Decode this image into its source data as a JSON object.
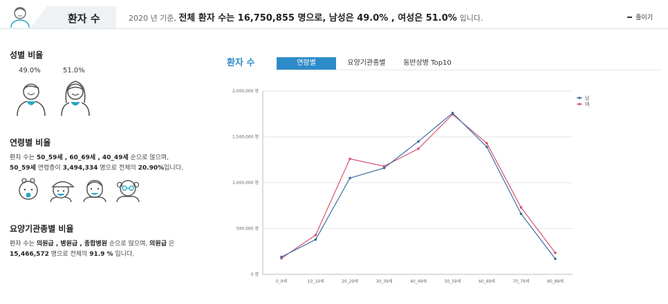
{
  "header": {
    "title": "환자 수",
    "summary_lead": "2020 년 기준, ",
    "summary_strong": "전체 환자 수는 16,750,855 명으로, 남성은 49.0% , 여성은 51.0%",
    "summary_tail": " 입니다.",
    "collapse_label": "줄이기",
    "avatar_icon": "patient-avatar-icon"
  },
  "left": {
    "gender": {
      "title": "성별 비율",
      "male_pct": "49.0%",
      "female_pct": "51.0%",
      "male_icon": "male-person-icon",
      "female_icon": "female-person-icon"
    },
    "age": {
      "title": "연령별 비율",
      "line1_a": "환자 수는 ",
      "line1_b": "50_59세 , 60_69세 , 40_49세",
      "line1_c": " 순으로 많으며,",
      "line2_a": "50_59세",
      "line2_b": " 연령층이 ",
      "line2_c": "3,494,334",
      "line2_d": " 명으로 전체의 ",
      "line2_e": "20.90%",
      "line2_f": "입니다.",
      "icons": [
        "baby-icon",
        "child-cap-icon",
        "adult-icon",
        "elder-glasses-icon"
      ]
    },
    "institution": {
      "title": "요양기관종별 비율",
      "line1_a": "환자 수는 ",
      "line1_b": "의원급 , 병원급 , 종합병원",
      "line1_c": " 순으로 많으며, ",
      "line1_d": "의원급",
      "line1_e": " 은",
      "line2_a": "15,466,572",
      "line2_b": " 명으로 전체의 ",
      "line2_c": "91.9 %",
      "line2_d": " 입니다."
    }
  },
  "chart_panel": {
    "title": "환자 수",
    "tabs": [
      {
        "label": "연령별",
        "active": true
      },
      {
        "label": "요양기관종별",
        "active": false
      },
      {
        "label": "동반상병 Top10",
        "active": false
      }
    ]
  },
  "colors": {
    "accent": "#2e8bc9",
    "male_series": "#3b6fa3",
    "female_series": "#d5526e",
    "icon_teal": "#2aa6c7"
  },
  "chart_data": {
    "type": "line",
    "categories": [
      "0_9세",
      "10_19세",
      "20_29세",
      "30_39세",
      "40_49세",
      "50_59세",
      "60_69세",
      "70_79세",
      "80_89세"
    ],
    "y_ticks": [
      "0 명",
      "500,000 명",
      "1,000,000 명",
      "1,500,000 명",
      "2,000,000 명"
    ],
    "ylim": [
      0,
      2000000
    ],
    "series": [
      {
        "name": "남",
        "values": [
          190000,
          380000,
          1050000,
          1160000,
          1450000,
          1760000,
          1390000,
          660000,
          170000
        ]
      },
      {
        "name": "여",
        "values": [
          175000,
          430000,
          1260000,
          1180000,
          1370000,
          1745000,
          1430000,
          730000,
          235000
        ]
      }
    ],
    "legend": "top-right",
    "grid": true
  }
}
